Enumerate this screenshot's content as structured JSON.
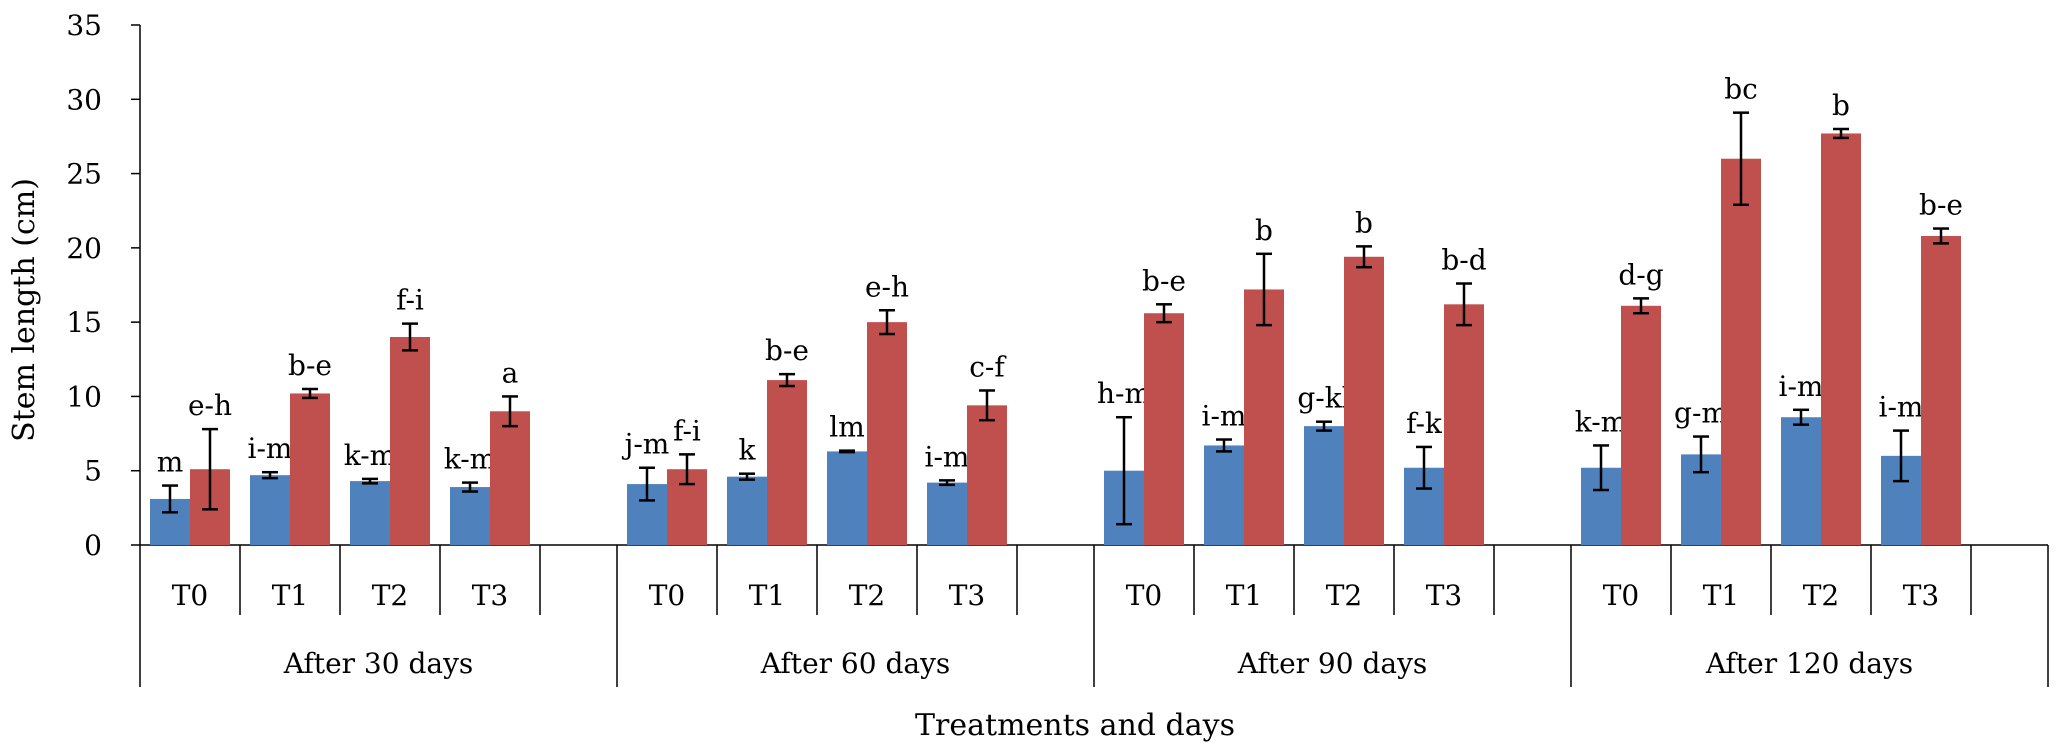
{
  "chart_data": {
    "type": "bar",
    "title": "",
    "ylabel": "Stem length (cm)",
    "xlabel": "Treatments and days",
    "ylim": [
      0,
      35
    ],
    "yticks": [
      0,
      5,
      10,
      15,
      20,
      25,
      30,
      35
    ],
    "grid": false,
    "legend": "none",
    "series_colors": [
      "#4F81BD",
      "#C0504D"
    ],
    "groups": [
      {
        "label": "After 30 days",
        "categories": [
          {
            "label": "T0",
            "bars": [
              {
                "value": 3.1,
                "err": 0.9,
                "letter": "m"
              },
              {
                "value": 5.1,
                "err": 2.7,
                "letter": "e-h"
              }
            ]
          },
          {
            "label": "T1",
            "bars": [
              {
                "value": 4.7,
                "err": 0.2,
                "letter": "i-m"
              },
              {
                "value": 10.2,
                "err": 0.3,
                "letter": "b-e"
              }
            ]
          },
          {
            "label": "T2",
            "bars": [
              {
                "value": 4.3,
                "err": 0.15,
                "letter": "k-m"
              },
              {
                "value": 14.0,
                "err": 0.9,
                "letter": "f-i"
              }
            ]
          },
          {
            "label": "T3",
            "bars": [
              {
                "value": 3.9,
                "err": 0.3,
                "letter": "k-m"
              },
              {
                "value": 9.0,
                "err": 1.0,
                "letter": "a"
              }
            ]
          }
        ]
      },
      {
        "label": "After 60 days",
        "categories": [
          {
            "label": "T0",
            "bars": [
              {
                "value": 4.1,
                "err": 1.1,
                "letter": "j-m"
              },
              {
                "value": 5.1,
                "err": 1.0,
                "letter": "f-i"
              }
            ]
          },
          {
            "label": "T1",
            "bars": [
              {
                "value": 4.6,
                "err": 0.2,
                "letter": "k"
              },
              {
                "value": 11.1,
                "err": 0.4,
                "letter": "b-e"
              }
            ]
          },
          {
            "label": "T2",
            "bars": [
              {
                "value": 6.3,
                "err": 0.05,
                "letter": "lm"
              },
              {
                "value": 15.0,
                "err": 0.8,
                "letter": "e-h"
              }
            ]
          },
          {
            "label": "T3",
            "bars": [
              {
                "value": 4.2,
                "err": 0.15,
                "letter": "i-m"
              },
              {
                "value": 9.4,
                "err": 1.0,
                "letter": "c-f"
              }
            ]
          }
        ]
      },
      {
        "label": "After 90 days",
        "categories": [
          {
            "label": "T0",
            "bars": [
              {
                "value": 5.0,
                "err": 3.6,
                "letter": "h-m"
              },
              {
                "value": 15.6,
                "err": 0.6,
                "letter": "b-e"
              }
            ]
          },
          {
            "label": "T1",
            "bars": [
              {
                "value": 6.7,
                "err": 0.4,
                "letter": "i-m"
              },
              {
                "value": 17.2,
                "err": 2.4,
                "letter": "b"
              }
            ]
          },
          {
            "label": "T2",
            "bars": [
              {
                "value": 8.0,
                "err": 0.3,
                "letter": "g-kl"
              },
              {
                "value": 19.4,
                "err": 0.7,
                "letter": "b"
              }
            ]
          },
          {
            "label": "T3",
            "bars": [
              {
                "value": 5.2,
                "err": 1.4,
                "letter": "f-k"
              },
              {
                "value": 16.2,
                "err": 1.4,
                "letter": "b-d"
              }
            ]
          }
        ]
      },
      {
        "label": "After 120 days",
        "categories": [
          {
            "label": "T0",
            "bars": [
              {
                "value": 5.2,
                "err": 1.5,
                "letter": "k-m"
              },
              {
                "value": 16.1,
                "err": 0.5,
                "letter": "d-g"
              }
            ]
          },
          {
            "label": "T1",
            "bars": [
              {
                "value": 6.1,
                "err": 1.2,
                "letter": "g-m"
              },
              {
                "value": 26.0,
                "err": 3.1,
                "letter": "bc"
              }
            ]
          },
          {
            "label": "T2",
            "bars": [
              {
                "value": 8.6,
                "err": 0.5,
                "letter": "i-m"
              },
              {
                "value": 27.7,
                "err": 0.3,
                "letter": "b"
              }
            ]
          },
          {
            "label": "T3",
            "bars": [
              {
                "value": 6.0,
                "err": 1.7,
                "letter": "i-m"
              },
              {
                "value": 20.8,
                "err": 0.5,
                "letter": "b-e"
              }
            ]
          }
        ]
      }
    ]
  }
}
